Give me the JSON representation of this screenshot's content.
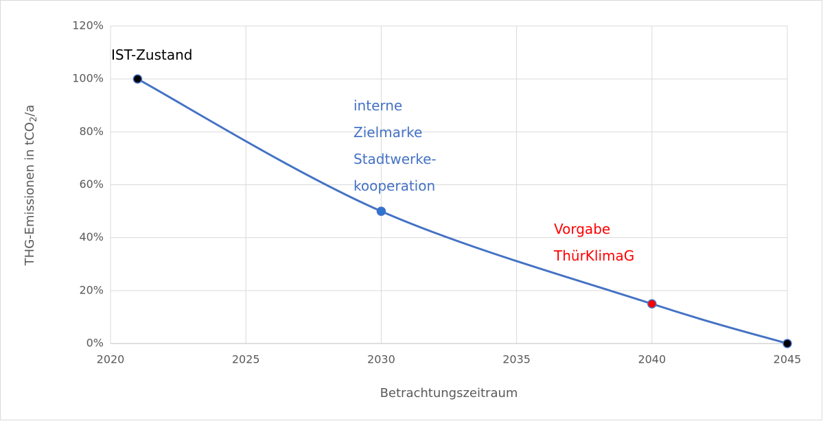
{
  "chart_data": {
    "type": "line",
    "x": [
      2021,
      2030,
      2040,
      2045
    ],
    "values": [
      100,
      50,
      15,
      0
    ],
    "color": "#4472c4",
    "marker_colors": [
      "#000000",
      "#2e75d0",
      "#ff0000",
      "#000000"
    ],
    "xlim": [
      2020,
      2045
    ],
    "xticks": [
      2020,
      2025,
      2030,
      2035,
      2040,
      2045
    ],
    "ylim": [
      0,
      120
    ],
    "yticks": [
      {
        "value": 0,
        "label": "0%"
      },
      {
        "value": 20,
        "label": "20%"
      },
      {
        "value": 40,
        "label": "40%"
      },
      {
        "value": 60,
        "label": "60%"
      },
      {
        "value": 80,
        "label": "80%"
      },
      {
        "value": 100,
        "label": "100%"
      },
      {
        "value": 120,
        "label": "120%"
      }
    ],
    "grid": true,
    "xlabel": "Betrachtungszeitraum",
    "ylabel": [
      "THG-Emissionen in tCO",
      "2",
      "/a"
    ],
    "annotations": [
      {
        "lines": [
          "IST-Zustand"
        ],
        "color": "#000000"
      },
      {
        "lines": [
          "interne",
          "Zielmarke",
          "Stadtwerke-",
          "kooperation"
        ],
        "color": "#4472c4"
      },
      {
        "lines": [
          "Vorgabe",
          "ThürKlimaG"
        ],
        "color": "#ff0000"
      }
    ]
  }
}
